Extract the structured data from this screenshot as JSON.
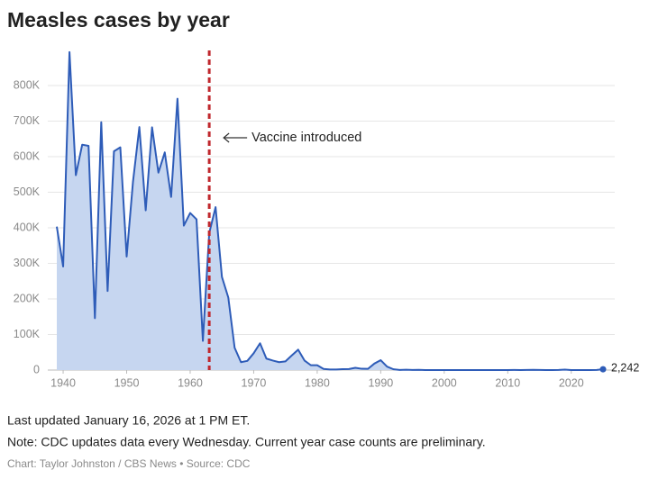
{
  "chart_data": {
    "type": "area",
    "title": "Measles cases by year",
    "x": [
      1939,
      1940,
      1941,
      1942,
      1943,
      1944,
      1945,
      1946,
      1947,
      1948,
      1949,
      1950,
      1951,
      1952,
      1953,
      1954,
      1955,
      1956,
      1957,
      1958,
      1959,
      1960,
      1961,
      1962,
      1963,
      1964,
      1965,
      1966,
      1967,
      1968,
      1969,
      1970,
      1971,
      1972,
      1973,
      1974,
      1975,
      1976,
      1977,
      1978,
      1979,
      1980,
      1981,
      1982,
      1983,
      1984,
      1985,
      1986,
      1987,
      1988,
      1989,
      1990,
      1991,
      1992,
      1993,
      1994,
      1995,
      1996,
      1997,
      1998,
      1999,
      2000,
      2001,
      2002,
      2003,
      2004,
      2005,
      2006,
      2007,
      2008,
      2009,
      2010,
      2011,
      2012,
      2013,
      2014,
      2015,
      2016,
      2017,
      2018,
      2019,
      2020,
      2021,
      2022,
      2023,
      2024,
      2025
    ],
    "values": [
      403317,
      291162,
      894134,
      548000,
      633678,
      630291,
      146013,
      697000,
      222375,
      615104,
      626281,
      319124,
      530118,
      683077,
      449146,
      682720,
      555156,
      611936,
      486799,
      763094,
      406162,
      441703,
      423919,
      82000,
      385156,
      458083,
      261904,
      204136,
      62705,
      22231,
      25826,
      47351,
      75290,
      32275,
      26690,
      22094,
      24374,
      41126,
      57345,
      26871,
      13597,
      13506,
      3124,
      1714,
      1497,
      2587,
      2822,
      6282,
      3655,
      3396,
      18193,
      27786,
      9643,
      2237,
      312,
      963,
      281,
      508,
      138,
      100,
      100,
      86,
      116,
      44,
      56,
      37,
      66,
      55,
      43,
      140,
      71,
      63,
      220,
      55,
      187,
      667,
      188,
      86,
      120,
      375,
      1274,
      13,
      49,
      121,
      59,
      285,
      2242
    ],
    "value_labels": [
      null,
      null,
      null,
      null,
      null,
      null,
      null,
      null,
      null,
      null,
      null,
      null,
      null,
      null,
      null,
      null,
      null,
      null,
      null,
      null,
      null,
      null,
      null,
      null,
      null,
      null,
      null,
      null,
      null,
      null,
      null,
      null,
      null,
      null,
      null,
      null,
      null,
      null,
      null,
      null,
      null,
      null,
      null,
      null,
      null,
      null,
      null,
      null,
      null,
      null,
      null,
      null,
      null,
      null,
      null,
      null,
      null,
      null,
      null,
      null,
      null,
      null,
      null,
      null,
      null,
      null,
      null,
      null,
      null,
      null,
      null,
      null,
      null,
      null,
      null,
      null,
      null,
      null,
      null,
      null,
      null,
      null,
      null,
      null,
      null,
      null,
      "2,242"
    ],
    "color": "#2e5cb8",
    "fill_color": "#c6d6f0",
    "xlim": [
      1939,
      2025
    ],
    "xticks": [
      1940,
      1950,
      1960,
      1970,
      1980,
      1990,
      2000,
      2010,
      2020
    ],
    "ylim": [
      0,
      900000
    ],
    "yticks": [
      0,
      {
        "value": 100000,
        "label": "100K"
      },
      {
        "value": 200000,
        "label": "200K"
      },
      {
        "value": 300000,
        "label": "300K"
      },
      {
        "value": 400000,
        "label": "400K"
      },
      {
        "value": 500000,
        "label": "500K"
      },
      {
        "value": 600000,
        "label": "600K"
      },
      {
        "value": 700000,
        "label": "700K"
      },
      {
        "value": 800000,
        "label": "800K"
      }
    ],
    "grid": true,
    "annotations": [
      {
        "text": "Vaccine introduced",
        "x": 1963,
        "color": "#c0282d"
      }
    ],
    "notes": [
      "Last updated January 16, 2026 at 1 PM ET.",
      "Note: CDC updates data every Wednesday. Current year case counts are preliminary."
    ],
    "credit": "Chart: Taylor Johnston / CBS News • Source: CDC"
  }
}
